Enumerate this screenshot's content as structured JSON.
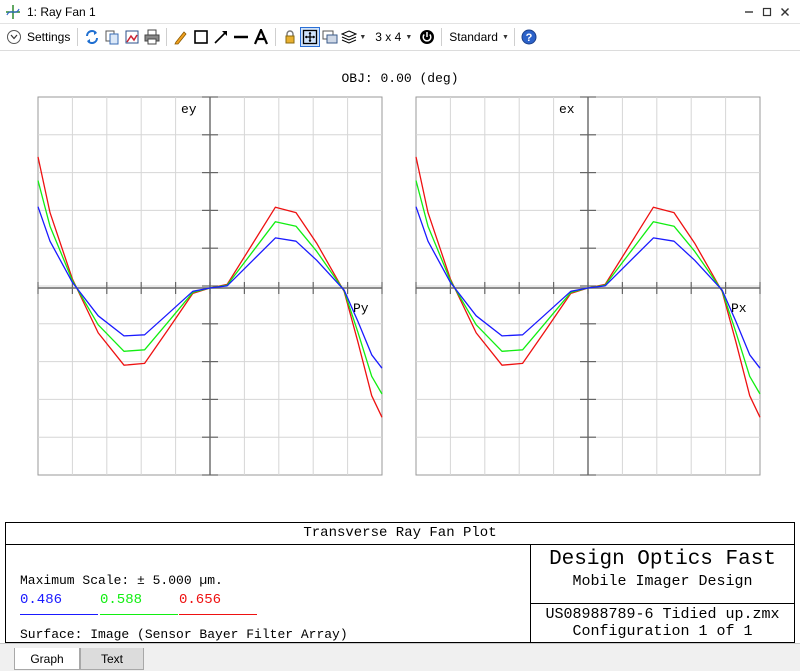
{
  "window": {
    "title": "1: Ray Fan 1",
    "minimize_icon": "minimize-icon",
    "restore_icon": "restore-icon",
    "close_icon": "close-icon"
  },
  "toolbar": {
    "settings_label": "Settings",
    "layout_label": "3 x 4",
    "style_label": "Standard"
  },
  "plot": {
    "obj_label": "OBJ: 0.00 (deg)",
    "left_panel": {
      "y_axis_label": "ey",
      "x_axis_label": "Py"
    },
    "right_panel": {
      "y_axis_label": "ex",
      "x_axis_label": "Px"
    },
    "colors": {
      "blue": "#1a1aff",
      "green": "#11ee11",
      "red": "#ee1111"
    }
  },
  "footer": {
    "title": "Transverse Ray Fan Plot",
    "max_scale": "Maximum Scale: ± 5.000 µm.",
    "wavelengths": [
      {
        "label": "0.486",
        "color": "#1a1aff"
      },
      {
        "label": "0.588",
        "color": "#11ee11"
      },
      {
        "label": "0.656",
        "color": "#ee1111"
      }
    ],
    "surface": "Surface: Image (Sensor Bayer Filter Array)",
    "design_title": "Design Optics Fast",
    "design_sub": "Mobile Imager Design",
    "file_name": "US08988789-6 Tidied up.zmx",
    "configuration": "Configuration 1 of 1"
  },
  "tabs": [
    {
      "label": "Graph",
      "active": true
    },
    {
      "label": "Text",
      "active": false
    }
  ]
}
